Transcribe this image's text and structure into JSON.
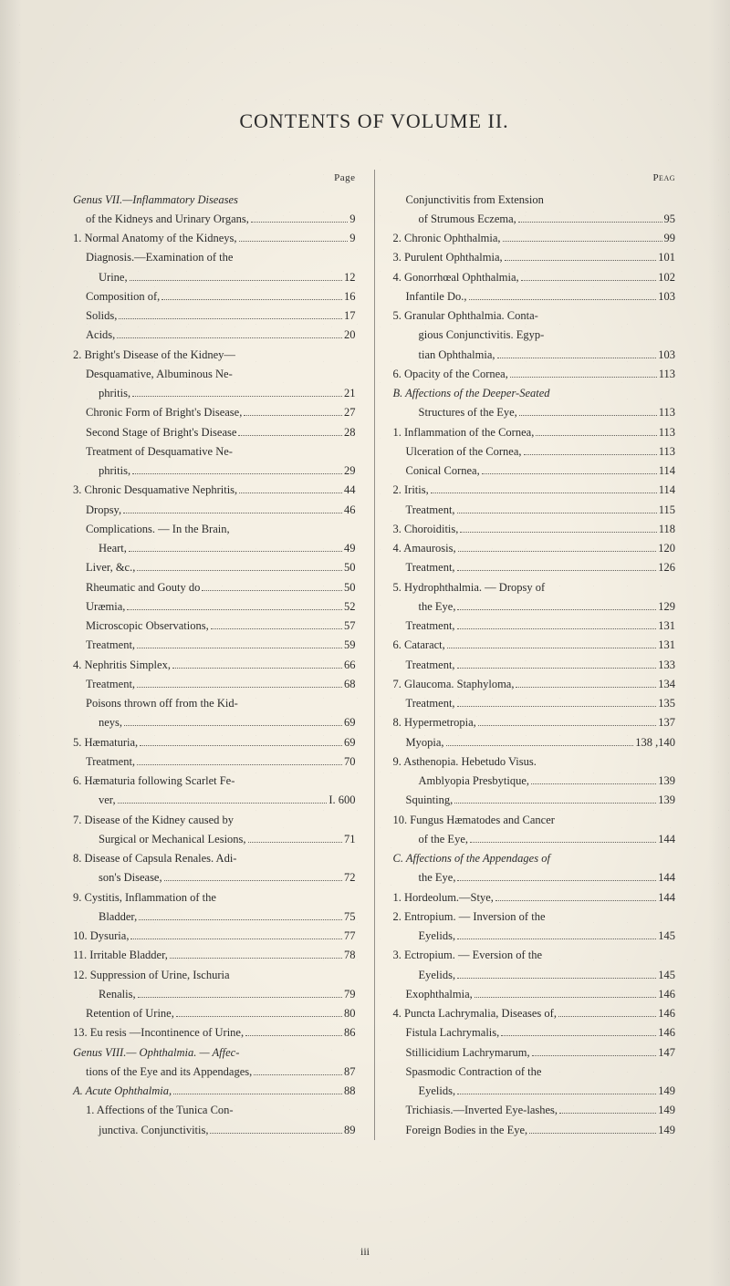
{
  "title": "CONTENTS OF VOLUME II.",
  "pageLabelLeft": "Page",
  "pageLabelRight": "Peag",
  "footer": "iii",
  "left": [
    {
      "label": "Genus VII.—Inflammatory Diseases",
      "page": "",
      "indent": 0,
      "italic": true,
      "genusItalic": "Genus"
    },
    {
      "label": "of the Kidneys and Urinary Organs,",
      "page": "9",
      "indent": 1
    },
    {
      "label": "1. Normal Anatomy of the Kidneys,",
      "page": "9",
      "indent": 0
    },
    {
      "label": "Diagnosis.—Examination of the",
      "page": "",
      "indent": 1
    },
    {
      "label": "Urine,",
      "page": "12",
      "indent": 2
    },
    {
      "label": "Composition of,",
      "page": "16",
      "indent": 1
    },
    {
      "label": "Solids,",
      "page": "17",
      "indent": 1
    },
    {
      "label": "Acids,",
      "page": "20",
      "indent": 1
    },
    {
      "label": "2. Bright's Disease of the Kidney—",
      "page": "",
      "indent": 0
    },
    {
      "label": "Desquamative, Albuminous Ne-",
      "page": "",
      "indent": 1
    },
    {
      "label": "phritis,",
      "page": "21",
      "indent": 2
    },
    {
      "label": "Chronic Form of Bright's Disease,",
      "page": "27",
      "indent": 1
    },
    {
      "label": "Second Stage of Bright's Disease",
      "page": "28",
      "indent": 1
    },
    {
      "label": "Treatment of Desquamative Ne-",
      "page": "",
      "indent": 1
    },
    {
      "label": "phritis,",
      "page": "29",
      "indent": 2
    },
    {
      "label": "3. Chronic Desquamative Nephritis,",
      "page": "44",
      "indent": 0
    },
    {
      "label": "Dropsy,",
      "page": "46",
      "indent": 1
    },
    {
      "label": "Complications. — In the Brain,",
      "page": "",
      "indent": 1
    },
    {
      "label": "Heart,",
      "page": "49",
      "indent": 2
    },
    {
      "label": "Liver, &c.,",
      "page": "50",
      "indent": 1
    },
    {
      "label": "Rheumatic and Gouty do",
      "page": "50",
      "indent": 1
    },
    {
      "label": "Uræmia,",
      "page": "52",
      "indent": 1
    },
    {
      "label": "Microscopic Observations,",
      "page": "57",
      "indent": 1
    },
    {
      "label": "Treatment,",
      "page": "59",
      "indent": 1
    },
    {
      "label": "4. Nephritis Simplex,",
      "page": "66",
      "indent": 0
    },
    {
      "label": "Treatment,",
      "page": "68",
      "indent": 1
    },
    {
      "label": "Poisons thrown off from the Kid-",
      "page": "",
      "indent": 1
    },
    {
      "label": "neys,",
      "page": "69",
      "indent": 2
    },
    {
      "label": "5. Hæmaturia,",
      "page": "69",
      "indent": 0
    },
    {
      "label": "Treatment,",
      "page": "70",
      "indent": 1
    },
    {
      "label": "6. Hæmaturia following Scarlet Fe-",
      "page": "",
      "indent": 0
    },
    {
      "label": "ver,",
      "page": "I. 600",
      "indent": 2
    },
    {
      "label": "7. Disease of the Kidney caused by",
      "page": "",
      "indent": 0
    },
    {
      "label": "Surgical or Mechanical Lesions,",
      "page": "71",
      "indent": 2
    },
    {
      "label": "8. Disease of Capsula Renales. Adi-",
      "page": "",
      "indent": 0
    },
    {
      "label": "son's Disease,",
      "page": "72",
      "indent": 2
    },
    {
      "label": "9. Cystitis, Inflammation of the",
      "page": "",
      "indent": 0
    },
    {
      "label": "Bladder,",
      "page": "75",
      "indent": 2
    },
    {
      "label": "10. Dysuria,",
      "page": "77",
      "indent": 0
    },
    {
      "label": "11. Irritable Bladder,",
      "page": "78",
      "indent": 0
    },
    {
      "label": "12. Suppression of Urine, Ischuria",
      "page": "",
      "indent": 0
    },
    {
      "label": "Renalis,",
      "page": "79",
      "indent": 2
    },
    {
      "label": "Retention of Urine,",
      "page": "80",
      "indent": 1
    },
    {
      "label": "13. Eu resis —Incontinence of Urine,",
      "page": "86",
      "indent": 0
    },
    {
      "label": "Genus VIII.— Ophthalmia. — Affec-",
      "page": "",
      "indent": 0,
      "italic": true
    },
    {
      "label": "tions of the Eye and its Appendages,",
      "page": "87",
      "indent": 1
    },
    {
      "label": "A. Acute Ophthalmia,",
      "page": "88",
      "indent": 0,
      "italic": true
    },
    {
      "label": "1. Affections of the Tunica Con-",
      "page": "",
      "indent": 1
    },
    {
      "label": "junctiva. Conjunctivitis,",
      "page": "89",
      "indent": 2
    }
  ],
  "right": [
    {
      "label": "Conjunctivitis from Extension",
      "page": "",
      "indent": 1
    },
    {
      "label": "of Strumous Eczema,",
      "page": "95",
      "indent": 2
    },
    {
      "label": "2. Chronic Ophthalmia,",
      "page": "99",
      "indent": 0
    },
    {
      "label": "3. Purulent Ophthalmia,",
      "page": "101",
      "indent": 0
    },
    {
      "label": "4. Gonorrhœal Ophthalmia,",
      "page": "102",
      "indent": 0
    },
    {
      "label": "Infantile Do.,",
      "page": "103",
      "indent": 1
    },
    {
      "label": "5. Granular Ophthalmia. Conta-",
      "page": "",
      "indent": 0
    },
    {
      "label": "gious Conjunctivitis. Egyp-",
      "page": "",
      "indent": 2
    },
    {
      "label": "tian Ophthalmia,",
      "page": "103",
      "indent": 2
    },
    {
      "label": "6. Opacity of the Cornea,",
      "page": "113",
      "indent": 0
    },
    {
      "label": "B. Affections of the Deeper-Seated",
      "page": "",
      "indent": 0,
      "italic": true
    },
    {
      "label": "Structures of the Eye,",
      "page": "113",
      "indent": 2
    },
    {
      "label": "1. Inflammation of the Cornea,",
      "page": "113",
      "indent": 0
    },
    {
      "label": "Ulceration of the Cornea,",
      "page": "113",
      "indent": 1
    },
    {
      "label": "Conical Cornea,",
      "page": "114",
      "indent": 1
    },
    {
      "label": "2. Iritis,",
      "page": "114",
      "indent": 0
    },
    {
      "label": "Treatment,",
      "page": "115",
      "indent": 1
    },
    {
      "label": "3. Choroiditis,",
      "page": "118",
      "indent": 0
    },
    {
      "label": "4. Amaurosis,",
      "page": "120",
      "indent": 0
    },
    {
      "label": "Treatment,",
      "page": "126",
      "indent": 1
    },
    {
      "label": "5. Hydrophthalmia. — Dropsy of",
      "page": "",
      "indent": 0
    },
    {
      "label": "the Eye,",
      "page": "129",
      "indent": 2
    },
    {
      "label": "Treatment,",
      "page": "131",
      "indent": 1
    },
    {
      "label": "6. Cataract,",
      "page": "131",
      "indent": 0
    },
    {
      "label": "Treatment,",
      "page": "133",
      "indent": 1
    },
    {
      "label": "7. Glaucoma. Staphyloma,",
      "page": "134",
      "indent": 0
    },
    {
      "label": "Treatment,",
      "page": "135",
      "indent": 1
    },
    {
      "label": "8. Hypermetropia,",
      "page": "137",
      "indent": 0
    },
    {
      "label": "Myopia,",
      "page": "138 ,140",
      "indent": 1
    },
    {
      "label": "9. Asthenopia. Hebetudo Visus.",
      "page": "",
      "indent": 0
    },
    {
      "label": "Amblyopia Presbytique,",
      "page": "139",
      "indent": 2
    },
    {
      "label": "Squinting,",
      "page": "139",
      "indent": 1
    },
    {
      "label": "10. Fungus Hæmatodes and Cancer",
      "page": "",
      "indent": 0
    },
    {
      "label": "of the Eye,",
      "page": "144",
      "indent": 2
    },
    {
      "label": "C. Affections of the Appendages of",
      "page": "",
      "indent": 0,
      "italic": true
    },
    {
      "label": "the Eye,",
      "page": "144",
      "indent": 2
    },
    {
      "label": "1. Hordeolum.—Stye,",
      "page": "144",
      "indent": 0
    },
    {
      "label": "2. Entropium. — Inversion of the",
      "page": "",
      "indent": 0
    },
    {
      "label": "Eyelids,",
      "page": "145",
      "indent": 2
    },
    {
      "label": "3. Ectropium. — Eversion of the",
      "page": "",
      "indent": 0
    },
    {
      "label": "Eyelids,",
      "page": "145",
      "indent": 2
    },
    {
      "label": "Exophthalmia,",
      "page": "146",
      "indent": 1
    },
    {
      "label": "4. Puncta Lachrymalia, Diseases of,",
      "page": "146",
      "indent": 0
    },
    {
      "label": "Fistula Lachrymalis,",
      "page": "146",
      "indent": 1
    },
    {
      "label": "Stillicidium Lachrymarum,",
      "page": "147",
      "indent": 1
    },
    {
      "label": "Spasmodic Contraction of the",
      "page": "",
      "indent": 1
    },
    {
      "label": "Eyelids,",
      "page": "149",
      "indent": 2
    },
    {
      "label": "Trichiasis.—Inverted Eye-lashes,",
      "page": "149",
      "indent": 1
    },
    {
      "label": "Foreign Bodies in the Eye,",
      "page": "149",
      "indent": 1
    }
  ]
}
